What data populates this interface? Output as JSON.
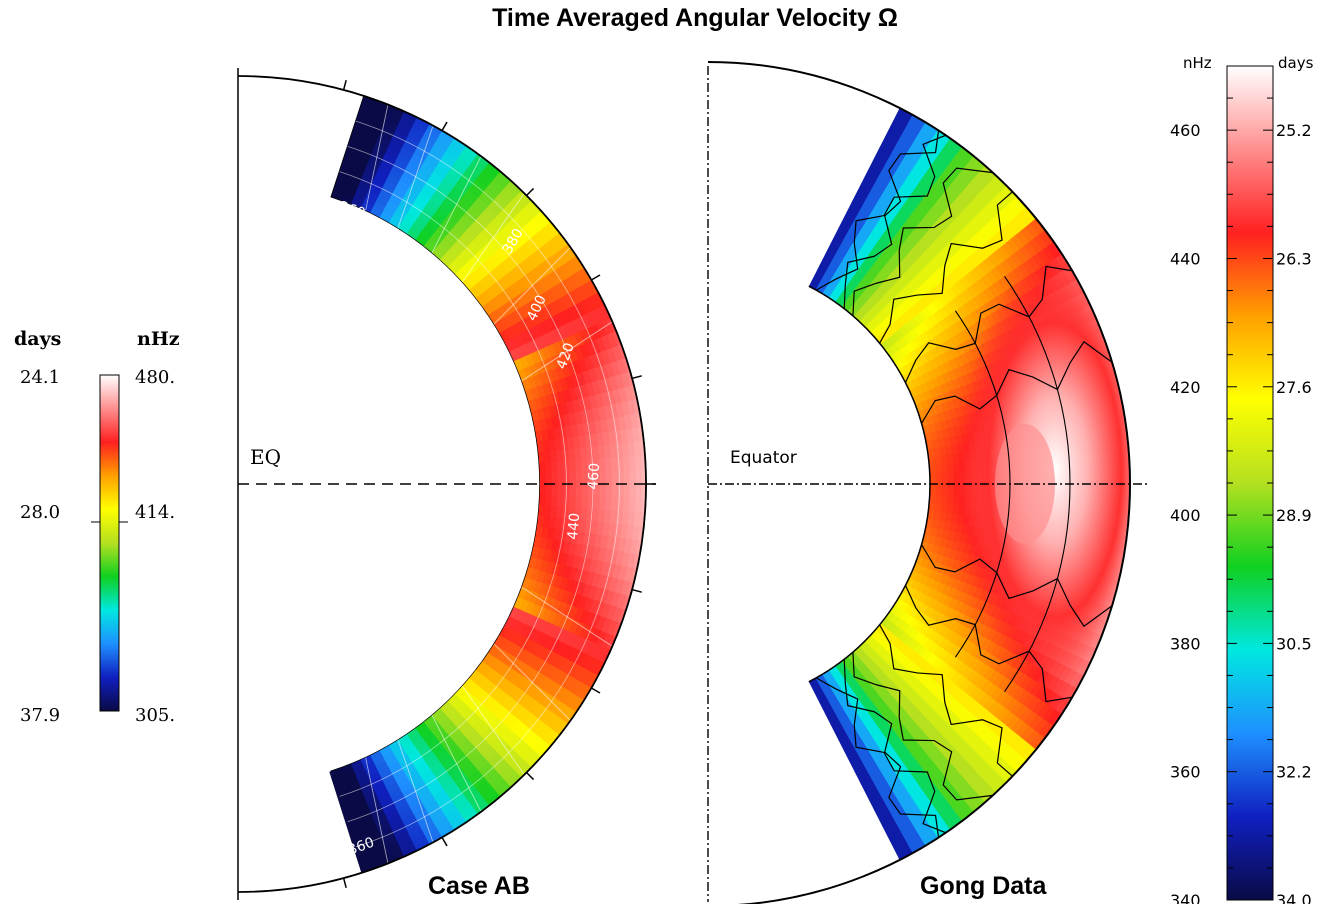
{
  "title": "Time Averaged Angular Velocity Ω",
  "left_colorbar": {
    "days_header": "days",
    "nhz_header": "nHz",
    "days_labels": [
      "24.1",
      "28.0",
      "37.9"
    ],
    "nhz_labels": [
      "480.",
      "414.",
      "305."
    ]
  },
  "right_colorbar": {
    "nhz_header": "nHz",
    "days_header": "days",
    "nhz_labels": [
      "460",
      "440",
      "420",
      "400",
      "380",
      "360",
      "340"
    ],
    "days_labels": [
      "25.2",
      "26.3",
      "27.6",
      "28.9",
      "30.5",
      "32.2",
      "34.0"
    ]
  },
  "panel_left": {
    "caption": "Case AB",
    "equator_label": "EQ",
    "contour_labels": [
      "360",
      "380",
      "400",
      "420",
      "440",
      "460",
      "360"
    ]
  },
  "panel_right": {
    "caption": "Gong Data",
    "equator_label": "Equator"
  },
  "chart_data": [
    {
      "type": "heatmap",
      "title": "Time Averaged Angular Velocity Ω",
      "subtitle": "Case AB",
      "geometry": "meridional half-annulus, polar angle from north pole to south pole",
      "colorbar": {
        "range_nhz": [
          305,
          480
        ],
        "labels_nhz": [
          480,
          414,
          305
        ],
        "labels_days": [
          24.1,
          28.0,
          37.9
        ]
      },
      "contour_levels_nhz": [
        360,
        380,
        400,
        420,
        440,
        460
      ],
      "approx_values": [
        {
          "region": "equator, outer surface",
          "omega_nhz": 470
        },
        {
          "region": "equator, inner boundary",
          "omega_nhz": 445
        },
        {
          "region": "mid-latitude ~45°",
          "omega_nhz": 405
        },
        {
          "region": "high latitude ~70°",
          "omega_nhz": 330
        }
      ]
    },
    {
      "type": "heatmap",
      "subtitle": "Gong Data",
      "geometry": "meridional half-annulus, polar angle from north pole to south pole",
      "colorbar": {
        "range_nhz": [
          340,
          470
        ],
        "labels_nhz": [
          460,
          440,
          420,
          400,
          380,
          360,
          340
        ],
        "labels_days": [
          25.2,
          26.3,
          27.6,
          28.9,
          30.5,
          32.2,
          34.0
        ]
      },
      "approx_values": [
        {
          "region": "equator, outer surface",
          "omega_nhz": 462
        },
        {
          "region": "equator, inner boundary",
          "omega_nhz": 432
        },
        {
          "region": "mid-latitude ~45°",
          "omega_nhz": 425
        },
        {
          "region": "high latitude ~70°",
          "omega_nhz": 355
        }
      ]
    }
  ],
  "colors": {
    "scale": [
      "#0a0a46",
      "#1020c0",
      "#1e90ff",
      "#00e8e0",
      "#10d020",
      "#b4e020",
      "#ffff00",
      "#ffa000",
      "#ff2020",
      "#ff8e8e",
      "#ffffff"
    ]
  }
}
